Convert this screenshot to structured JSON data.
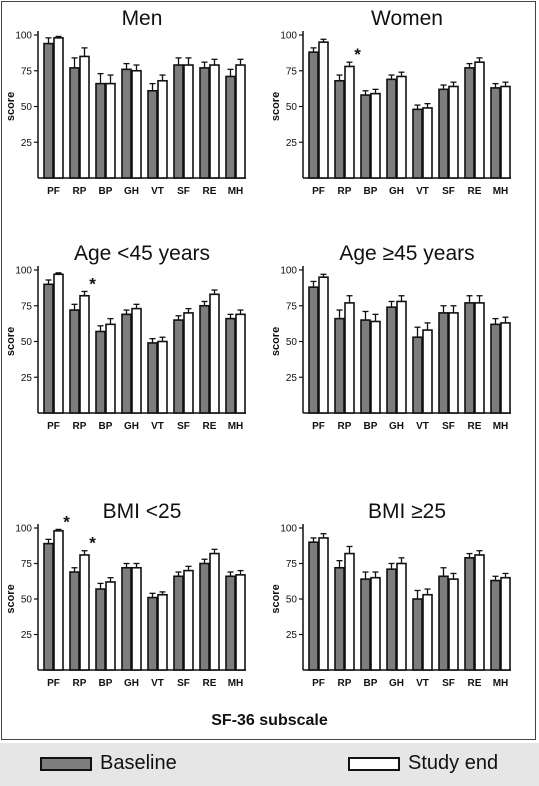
{
  "figure": {
    "xlabel": "SF-36 subscale",
    "legend": {
      "baseline": "Baseline",
      "study_end": "Study end"
    },
    "colors": {
      "baseline": "#7d7d7d",
      "study_end": "#ffffff",
      "outline": "#111111"
    }
  },
  "chart_data": [
    {
      "type": "bar",
      "title": "Men",
      "ylabel": "score",
      "ylim": [
        0,
        100
      ],
      "yticks": [
        25,
        50,
        75,
        100
      ],
      "categories": [
        "PF",
        "RP",
        "BP",
        "GH",
        "VT",
        "SF",
        "RE",
        "MH"
      ],
      "series": [
        {
          "name": "Baseline",
          "values": [
            94,
            77,
            66,
            76,
            61,
            79,
            77,
            71
          ],
          "errors": [
            4,
            7,
            7,
            4,
            5,
            5,
            4,
            5
          ]
        },
        {
          "name": "Study end",
          "values": [
            98,
            85,
            66,
            75,
            68,
            79,
            79,
            79
          ],
          "errors": [
            1,
            6,
            6,
            4,
            4,
            5,
            4,
            4
          ]
        }
      ],
      "annotations": []
    },
    {
      "type": "bar",
      "title": "Women",
      "ylabel": "score",
      "ylim": [
        0,
        100
      ],
      "yticks": [
        25,
        50,
        75,
        100
      ],
      "categories": [
        "PF",
        "RP",
        "BP",
        "GH",
        "VT",
        "SF",
        "RE",
        "MH"
      ],
      "series": [
        {
          "name": "Baseline",
          "values": [
            88,
            68,
            58,
            69,
            48,
            62,
            77,
            63
          ],
          "errors": [
            3,
            4,
            3,
            3,
            3,
            3,
            3,
            3
          ]
        },
        {
          "name": "Study end",
          "values": [
            95,
            78,
            59,
            71,
            49,
            64,
            81,
            64
          ],
          "errors": [
            2,
            3,
            3,
            3,
            3,
            3,
            3,
            3
          ]
        }
      ],
      "annotations": [
        {
          "text": "*",
          "category": "RP"
        }
      ]
    },
    {
      "type": "bar",
      "title": "Age <45 years",
      "ylabel": "score",
      "ylim": [
        0,
        100
      ],
      "yticks": [
        25,
        50,
        75,
        100
      ],
      "categories": [
        "PF",
        "RP",
        "BP",
        "GH",
        "VT",
        "SF",
        "RE",
        "MH"
      ],
      "series": [
        {
          "name": "Baseline",
          "values": [
            90,
            72,
            57,
            69,
            49,
            65,
            75,
            66
          ],
          "errors": [
            3,
            4,
            4,
            3,
            3,
            3,
            3,
            3
          ]
        },
        {
          "name": "Study end",
          "values": [
            97,
            82,
            62,
            73,
            50,
            70,
            83,
            69
          ],
          "errors": [
            1,
            3,
            4,
            3,
            3,
            3,
            3,
            3
          ]
        }
      ],
      "annotations": [
        {
          "text": "*",
          "category": "RP"
        }
      ]
    },
    {
      "type": "bar",
      "title": "Age ≥45 years",
      "ylabel": "score",
      "ylim": [
        0,
        100
      ],
      "yticks": [
        25,
        50,
        75,
        100
      ],
      "categories": [
        "PF",
        "RP",
        "BP",
        "GH",
        "VT",
        "SF",
        "RE",
        "MH"
      ],
      "series": [
        {
          "name": "Baseline",
          "values": [
            88,
            66,
            65,
            74,
            53,
            70,
            77,
            62
          ],
          "errors": [
            4,
            6,
            6,
            4,
            7,
            5,
            5,
            4
          ]
        },
        {
          "name": "Study end",
          "values": [
            95,
            77,
            64,
            78,
            58,
            70,
            77,
            63
          ],
          "errors": [
            2,
            5,
            5,
            4,
            5,
            5,
            5,
            4
          ]
        }
      ],
      "annotations": []
    },
    {
      "type": "bar",
      "title": "BMI <25",
      "ylabel": "score",
      "ylim": [
        0,
        100
      ],
      "yticks": [
        25,
        50,
        75,
        100
      ],
      "categories": [
        "PF",
        "RP",
        "BP",
        "GH",
        "VT",
        "SF",
        "RE",
        "MH"
      ],
      "series": [
        {
          "name": "Baseline",
          "values": [
            89,
            69,
            57,
            72,
            51,
            66,
            75,
            66
          ],
          "errors": [
            3,
            3,
            4,
            3,
            3,
            3,
            3,
            3
          ]
        },
        {
          "name": "Study end",
          "values": [
            98,
            81,
            62,
            72,
            53,
            70,
            82,
            67
          ],
          "errors": [
            1,
            3,
            3,
            3,
            2,
            3,
            3,
            3
          ]
        }
      ],
      "annotations": [
        {
          "text": "*",
          "category": "PF"
        },
        {
          "text": "*",
          "category": "RP"
        }
      ]
    },
    {
      "type": "bar",
      "title": "BMI ≥25",
      "ylabel": "score",
      "ylim": [
        0,
        100
      ],
      "yticks": [
        25,
        50,
        75,
        100
      ],
      "categories": [
        "PF",
        "RP",
        "BP",
        "GH",
        "VT",
        "SF",
        "RE",
        "MH"
      ],
      "series": [
        {
          "name": "Baseline",
          "values": [
            90,
            72,
            64,
            71,
            50,
            66,
            79,
            63
          ],
          "errors": [
            3,
            5,
            5,
            4,
            6,
            6,
            3,
            3
          ]
        },
        {
          "name": "Study end",
          "values": [
            93,
            82,
            65,
            75,
            53,
            64,
            81,
            65
          ],
          "errors": [
            3,
            5,
            4,
            4,
            4,
            4,
            3,
            3
          ]
        }
      ],
      "annotations": []
    }
  ]
}
